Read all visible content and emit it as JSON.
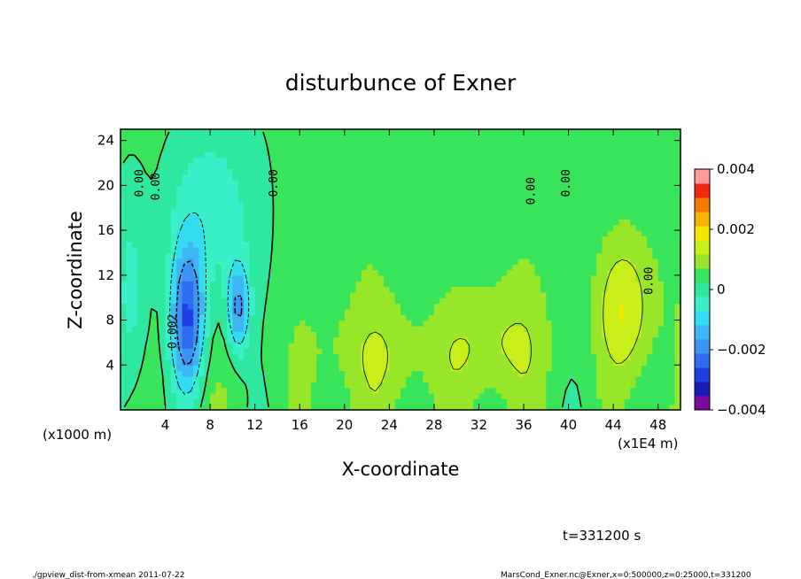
{
  "chart_data": {
    "type": "heatmap",
    "title": "disturbunce of Exner",
    "xlabel": "X-coordinate",
    "ylabel": "Z-coordinate",
    "x_unit_left": "(x1000 m)",
    "x_unit_right": "(x1E4 m)",
    "xticks": [
      "4",
      "8",
      "12",
      "16",
      "20",
      "24",
      "28",
      "32",
      "36",
      "40",
      "44",
      "48"
    ],
    "yticks": [
      "4",
      "8",
      "12",
      "16",
      "20",
      "24"
    ],
    "xlim": [
      0,
      50
    ],
    "ylim": [
      0,
      25
    ],
    "time_label": "t=331200 s",
    "colorbar": {
      "range": [
        -0.004,
        0.004
      ],
      "tick_labels": [
        "0.004",
        "0.002",
        "0",
        "−0.002",
        "−0.004"
      ],
      "levels": [
        -0.004,
        -0.0035,
        -0.003,
        -0.0025,
        -0.002,
        -0.0015,
        -0.001,
        -0.0005,
        0,
        0.0005,
        0.001,
        0.0015,
        0.002,
        0.0025,
        0.003,
        0.0035,
        0.004
      ],
      "colors": [
        "#7a0a9e",
        "#1a1ab4",
        "#1f3fe0",
        "#2f6cf0",
        "#3d94f2",
        "#3eb6f4",
        "#33dcf2",
        "#3af0c8",
        "#2ee8a0",
        "#38e45a",
        "#98e62a",
        "#c9ee1a",
        "#f0e600",
        "#f5b400",
        "#f57a00",
        "#ee2a10",
        "#ff9a9a"
      ]
    },
    "contour_labels": [
      {
        "text": "0.00",
        "x": 2.0,
        "y": 20.2
      },
      {
        "text": "0.00",
        "x": 3.5,
        "y": 19.9
      },
      {
        "text": "0.00",
        "x": 14.0,
        "y": 20.2
      },
      {
        "text": "0.00",
        "x": 37.0,
        "y": 19.5
      },
      {
        "text": "0.00",
        "x": 40.1,
        "y": 20.2
      },
      {
        "text": "0.00",
        "x": 47.5,
        "y": 11.5
      },
      {
        "text": "0.002",
        "x": 5.0,
        "y": 7.0
      }
    ],
    "field_features": [
      {
        "kind": "min",
        "x": 6.0,
        "z": 8.0,
        "sx": 1.5,
        "sz": 6.5,
        "amp": -0.0031
      },
      {
        "kind": "min",
        "x": 10.5,
        "z": 9.0,
        "sx": 1.0,
        "sz": 4.0,
        "amp": -0.0022
      },
      {
        "kind": "min",
        "x": 8.0,
        "z": 18.0,
        "sx": 4.0,
        "sz": 9.0,
        "amp": -0.0012
      },
      {
        "kind": "min",
        "x": 1.0,
        "z": 10.0,
        "sx": 1.5,
        "sz": 10.0,
        "amp": -0.0009
      },
      {
        "kind": "max",
        "x": 45.0,
        "z": 9.0,
        "sx": 2.5,
        "sz": 6.0,
        "amp": 0.0012
      },
      {
        "kind": "max",
        "x": 25.0,
        "z": 5.0,
        "sx": 8.0,
        "sz": 5.0,
        "amp": 0.0006
      },
      {
        "kind": "max",
        "x": 34.0,
        "z": 6.0,
        "sx": 4.0,
        "sz": 5.0,
        "amp": 0.0006
      }
    ]
  },
  "footer": {
    "left": "./gpview_dist-from-xmean  2011-07-22",
    "right": "MarsCond_Exner.nc@Exner,x=0:500000,z=0:25000,t=331200"
  }
}
